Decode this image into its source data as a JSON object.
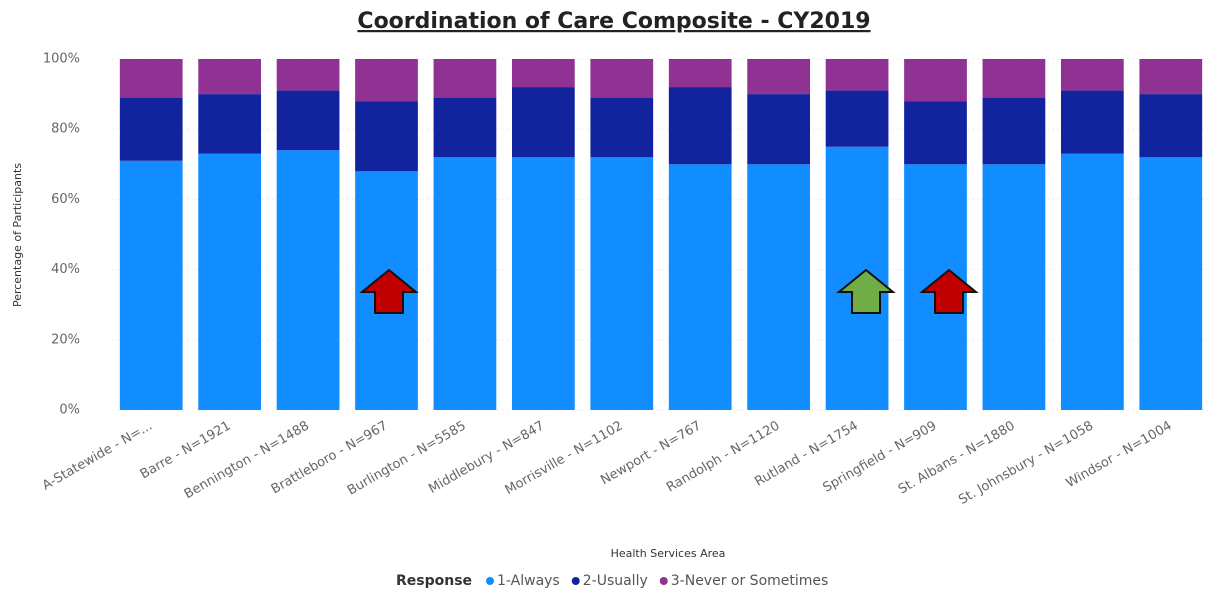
{
  "chart_data": {
    "type": "stacked_bar",
    "title": "Coordination of Care Composite - CY2019",
    "x_label": "Health Services Area",
    "y_label": "Percentage of Participants",
    "legend_title": "Response",
    "categories": [
      "A-Statewide - N=...",
      "Barre - N=1921",
      "Bennington - N=1488",
      "Brattleboro - N=967",
      "Burlington - N=5585",
      "Middlebury - N=847",
      "Morrisville - N=1102",
      "Newport - N=767",
      "Randolph - N=1120",
      "Rutland - N=1754",
      "Springfield - N=909",
      "St. Albans - N=1880",
      "St. Johnsbury - N=1058",
      "Windsor - N=1004"
    ],
    "series": [
      {
        "name": "1-Always",
        "color": "#118dff",
        "values": [
          71,
          73,
          74,
          68,
          72,
          72,
          72,
          70,
          70,
          75,
          70,
          70,
          73,
          72
        ]
      },
      {
        "name": "2-Usually",
        "color": "#12239e",
        "values": [
          18,
          17,
          17,
          20,
          17,
          20,
          17,
          22,
          20,
          16,
          18,
          19,
          18,
          18
        ]
      },
      {
        "name": "3-Never or Sometimes",
        "color": "#8f3294",
        "values": [
          11,
          10,
          9,
          12,
          11,
          8,
          11,
          8,
          10,
          9,
          12,
          11,
          9,
          10
        ]
      }
    ],
    "ylim": [
      0,
      100
    ],
    "yticks": [
      {
        "value": 0,
        "label": "0%"
      },
      {
        "value": 20,
        "label": "20%"
      },
      {
        "value": 40,
        "label": "40%"
      },
      {
        "value": 60,
        "label": "60%"
      },
      {
        "value": 80,
        "label": "80%"
      },
      {
        "value": 100,
        "label": "100%"
      }
    ],
    "grid": true
  }
}
